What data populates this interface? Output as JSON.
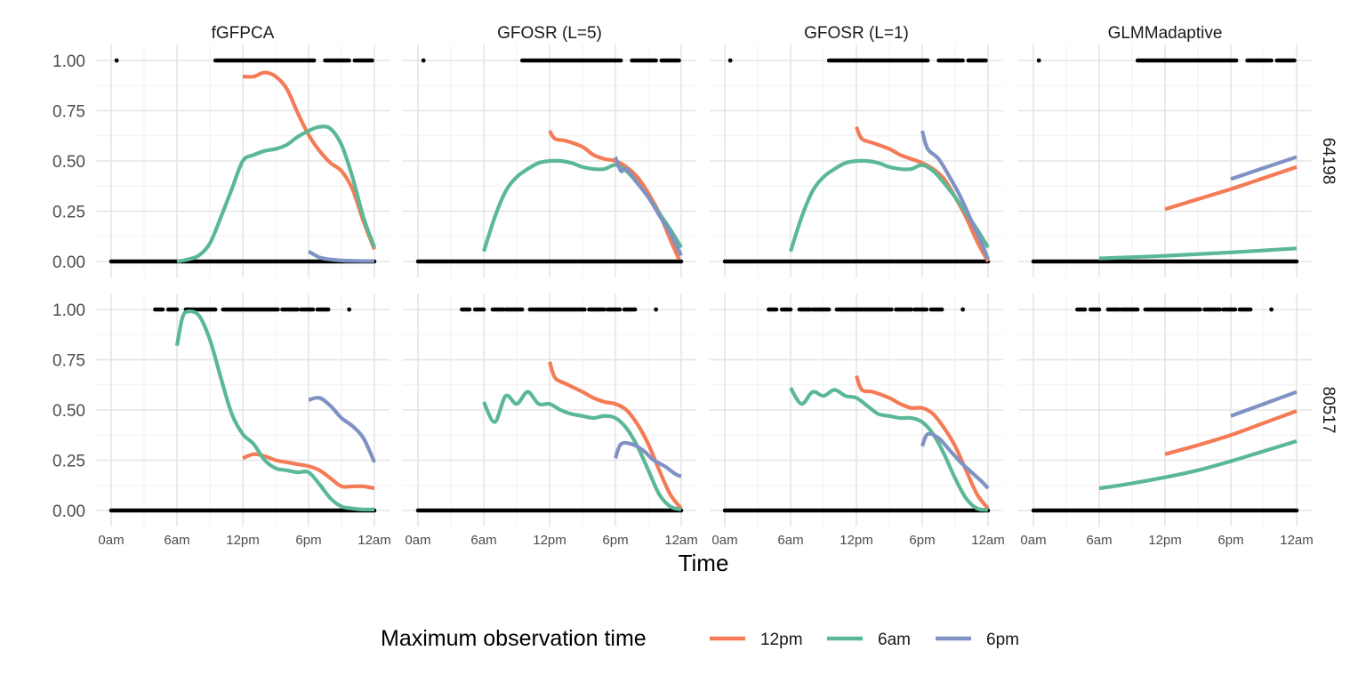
{
  "chart_data": {
    "type": "line",
    "facet_columns": [
      "fGFPCA",
      "GFOSR (L=5)",
      "GFOSR (L=1)",
      "GLMMadaptive"
    ],
    "facet_rows": [
      "64198",
      "80517"
    ],
    "xlabel": "Time",
    "ylabel": "",
    "xlim": [
      0,
      24
    ],
    "ylim": [
      0,
      1
    ],
    "x_ticks": [
      0,
      6,
      12,
      18,
      24
    ],
    "x_tick_labels": [
      "0am",
      "6am",
      "12pm",
      "6pm",
      "12am"
    ],
    "y_ticks": [
      0,
      0.25,
      0.5,
      0.75,
      1
    ],
    "y_tick_labels": [
      "0.00",
      "0.25",
      "0.50",
      "0.75",
      "1.00"
    ],
    "grid": true,
    "legend": {
      "title": "Maximum observation time",
      "placement": "bottom",
      "entries": [
        {
          "label": "12pm",
          "color": "#F47B55"
        },
        {
          "label": "6am",
          "color": "#5BB897"
        },
        {
          "label": "6pm",
          "color": "#8092C4"
        }
      ]
    },
    "observations": {
      "64198": {
        "ones": [
          [
            0.5,
            0.5
          ],
          [
            9.5,
            18.5
          ],
          [
            19.5,
            21.7
          ],
          [
            22.2,
            23.8
          ]
        ],
        "zeros": [
          [
            0,
            24
          ]
        ]
      },
      "80517": {
        "ones": [
          [
            4.0,
            4.7
          ],
          [
            5.2,
            6.0
          ],
          [
            6.8,
            7.8
          ],
          [
            8.0,
            9.5
          ],
          [
            10.2,
            15.2
          ],
          [
            15.6,
            17.0
          ],
          [
            17.3,
            18.4
          ],
          [
            18.8,
            19.8
          ],
          [
            21.7,
            21.7
          ]
        ],
        "zeros": [
          [
            0,
            24
          ]
        ]
      }
    },
    "panels": [
      {
        "row": "64198",
        "column": "fGFPCA",
        "series": [
          {
            "name": "12pm",
            "x": [
              12,
              13,
              14,
              15,
              16,
              17,
              18,
              19,
              20,
              21,
              22,
              23,
              24
            ],
            "y": [
              0.92,
              0.92,
              0.94,
              0.92,
              0.86,
              0.74,
              0.63,
              0.55,
              0.49,
              0.45,
              0.36,
              0.2,
              0.06
            ]
          },
          {
            "name": "6am",
            "x": [
              6,
              7,
              8,
              9,
              10,
              11,
              12,
              13,
              14,
              15,
              16,
              17,
              18,
              19,
              20,
              21,
              22,
              23,
              24
            ],
            "y": [
              0.0,
              0.01,
              0.03,
              0.09,
              0.22,
              0.36,
              0.5,
              0.53,
              0.55,
              0.56,
              0.58,
              0.62,
              0.65,
              0.67,
              0.66,
              0.58,
              0.42,
              0.22,
              0.07
            ]
          },
          {
            "name": "6pm",
            "x": [
              18,
              19,
              20,
              21,
              22,
              23,
              24
            ],
            "y": [
              0.05,
              0.02,
              0.01,
              0.005,
              0.003,
              0.002,
              0.002
            ]
          }
        ]
      },
      {
        "row": "64198",
        "column": "GFOSR (L=5)",
        "series": [
          {
            "name": "12pm",
            "x": [
              12,
              12.5,
              13.5,
              15,
              16,
              17,
              18,
              19,
              20,
              21,
              22,
              23,
              23.8
            ],
            "y": [
              0.65,
              0.61,
              0.6,
              0.57,
              0.53,
              0.51,
              0.5,
              0.47,
              0.42,
              0.34,
              0.24,
              0.11,
              0.01
            ]
          },
          {
            "name": "6am",
            "x": [
              6,
              7,
              8,
              9,
              10,
              11,
              12,
              13,
              14,
              15,
              16,
              17,
              18,
              19,
              20,
              21,
              22,
              23,
              24
            ],
            "y": [
              0.05,
              0.22,
              0.35,
              0.42,
              0.46,
              0.49,
              0.5,
              0.5,
              0.49,
              0.47,
              0.46,
              0.46,
              0.48,
              0.45,
              0.39,
              0.32,
              0.24,
              0.16,
              0.07
            ]
          },
          {
            "name": "6pm",
            "x": [
              18,
              18.5,
              19,
              20,
              21,
              22,
              23,
              24
            ],
            "y": [
              0.52,
              0.45,
              0.46,
              0.39,
              0.32,
              0.23,
              0.14,
              0.03
            ]
          }
        ]
      },
      {
        "row": "64198",
        "column": "GFOSR (L=1)",
        "series": [
          {
            "name": "12pm",
            "x": [
              12,
              12.5,
              13.5,
              15,
              16,
              17,
              18,
              19,
              20,
              21,
              22,
              23,
              24
            ],
            "y": [
              0.67,
              0.61,
              0.59,
              0.56,
              0.53,
              0.51,
              0.49,
              0.46,
              0.41,
              0.32,
              0.22,
              0.1,
              0.0
            ]
          },
          {
            "name": "6am",
            "x": [
              6,
              7,
              8,
              9,
              10,
              11,
              12,
              13,
              14,
              15,
              16,
              17,
              18,
              19,
              20,
              21,
              22,
              23,
              24
            ],
            "y": [
              0.05,
              0.22,
              0.35,
              0.42,
              0.46,
              0.49,
              0.5,
              0.5,
              0.49,
              0.47,
              0.46,
              0.46,
              0.48,
              0.45,
              0.39,
              0.32,
              0.24,
              0.16,
              0.07
            ]
          },
          {
            "name": "6pm",
            "x": [
              18,
              18.5,
              19.5,
              20.5,
              21.5,
              22.5,
              23.5,
              24
            ],
            "y": [
              0.65,
              0.56,
              0.51,
              0.42,
              0.32,
              0.2,
              0.08,
              0.01
            ]
          }
        ]
      },
      {
        "row": "64198",
        "column": "GLMMadaptive",
        "series": [
          {
            "name": "12pm",
            "x": [
              12,
              15,
              18,
              21,
              24
            ],
            "y": [
              0.26,
              0.31,
              0.36,
              0.415,
              0.47
            ]
          },
          {
            "name": "6am",
            "x": [
              6,
              12,
              18,
              24
            ],
            "y": [
              0.015,
              0.028,
              0.045,
              0.065
            ]
          },
          {
            "name": "6pm",
            "x": [
              18,
              21,
              24
            ],
            "y": [
              0.41,
              0.465,
              0.52
            ]
          }
        ]
      },
      {
        "row": "80517",
        "column": "fGFPCA",
        "series": [
          {
            "name": "12pm",
            "x": [
              12,
              13,
              14,
              15,
              16,
              17,
              18,
              19,
              20,
              21,
              22,
              23,
              24
            ],
            "y": [
              0.26,
              0.28,
              0.27,
              0.25,
              0.24,
              0.23,
              0.22,
              0.2,
              0.16,
              0.12,
              0.12,
              0.12,
              0.11
            ]
          },
          {
            "name": "6am",
            "x": [
              6,
              6.5,
              7,
              8,
              9,
              10,
              11,
              12,
              13,
              14,
              15,
              16,
              17,
              18,
              19,
              20,
              21,
              22,
              23,
              24
            ],
            "y": [
              0.82,
              0.96,
              0.99,
              0.97,
              0.85,
              0.66,
              0.48,
              0.38,
              0.33,
              0.25,
              0.21,
              0.2,
              0.19,
              0.19,
              0.13,
              0.06,
              0.02,
              0.01,
              0.005,
              0.005
            ]
          },
          {
            "name": "6pm",
            "x": [
              18,
              19,
              20,
              21,
              22,
              23,
              24
            ],
            "y": [
              0.55,
              0.56,
              0.52,
              0.46,
              0.42,
              0.36,
              0.24
            ]
          }
        ]
      },
      {
        "row": "80517",
        "column": "GFOSR (L=5)",
        "series": [
          {
            "name": "12pm",
            "x": [
              12,
              12.5,
              13.5,
              15,
              16,
              17,
              18,
              19,
              20,
              21,
              22,
              23,
              24
            ],
            "y": [
              0.74,
              0.66,
              0.63,
              0.59,
              0.56,
              0.54,
              0.53,
              0.5,
              0.43,
              0.33,
              0.2,
              0.08,
              0.01
            ]
          },
          {
            "name": "6am",
            "x": [
              6,
              7,
              8,
              9,
              10,
              11,
              12,
              13,
              14,
              15,
              16,
              17,
              18,
              19,
              20,
              21,
              22,
              23,
              24
            ],
            "y": [
              0.54,
              0.44,
              0.57,
              0.53,
              0.59,
              0.53,
              0.53,
              0.5,
              0.48,
              0.47,
              0.46,
              0.47,
              0.46,
              0.41,
              0.32,
              0.2,
              0.08,
              0.02,
              0.005
            ]
          },
          {
            "name": "6pm",
            "x": [
              18,
              18.5,
              19.5,
              20.5,
              21.5,
              22.5,
              23.5,
              24
            ],
            "y": [
              0.26,
              0.33,
              0.33,
              0.3,
              0.25,
              0.22,
              0.18,
              0.17
            ]
          }
        ]
      },
      {
        "row": "80517",
        "column": "GFOSR (L=1)",
        "series": [
          {
            "name": "12pm",
            "x": [
              12,
              12.5,
              13.5,
              15,
              16,
              17,
              18,
              19,
              20,
              21,
              22,
              23,
              24
            ],
            "y": [
              0.67,
              0.6,
              0.59,
              0.56,
              0.53,
              0.51,
              0.51,
              0.48,
              0.41,
              0.32,
              0.2,
              0.08,
              0.01
            ]
          },
          {
            "name": "6am",
            "x": [
              6,
              7,
              8,
              9,
              10,
              11,
              12,
              13,
              14,
              15,
              16,
              17,
              18,
              19,
              20,
              21,
              22,
              23,
              24
            ],
            "y": [
              0.61,
              0.53,
              0.59,
              0.57,
              0.6,
              0.57,
              0.56,
              0.52,
              0.48,
              0.47,
              0.46,
              0.46,
              0.44,
              0.38,
              0.28,
              0.16,
              0.06,
              0.01,
              0.003
            ]
          },
          {
            "name": "6pm",
            "x": [
              18,
              18.5,
              19.5,
              20.5,
              21.5,
              22.5,
              23.5,
              24
            ],
            "y": [
              0.32,
              0.38,
              0.36,
              0.3,
              0.24,
              0.19,
              0.14,
              0.11
            ]
          }
        ]
      },
      {
        "row": "80517",
        "column": "GLMMadaptive",
        "series": [
          {
            "name": "12pm",
            "x": [
              12,
              15,
              18,
              21,
              24
            ],
            "y": [
              0.28,
              0.325,
              0.375,
              0.435,
              0.495
            ]
          },
          {
            "name": "6am",
            "x": [
              6,
              9,
              12,
              15,
              18,
              21,
              24
            ],
            "y": [
              0.11,
              0.135,
              0.165,
              0.2,
              0.245,
              0.295,
              0.345
            ]
          },
          {
            "name": "6pm",
            "x": [
              18,
              21,
              24
            ],
            "y": [
              0.47,
              0.53,
              0.59
            ]
          }
        ]
      }
    ]
  }
}
